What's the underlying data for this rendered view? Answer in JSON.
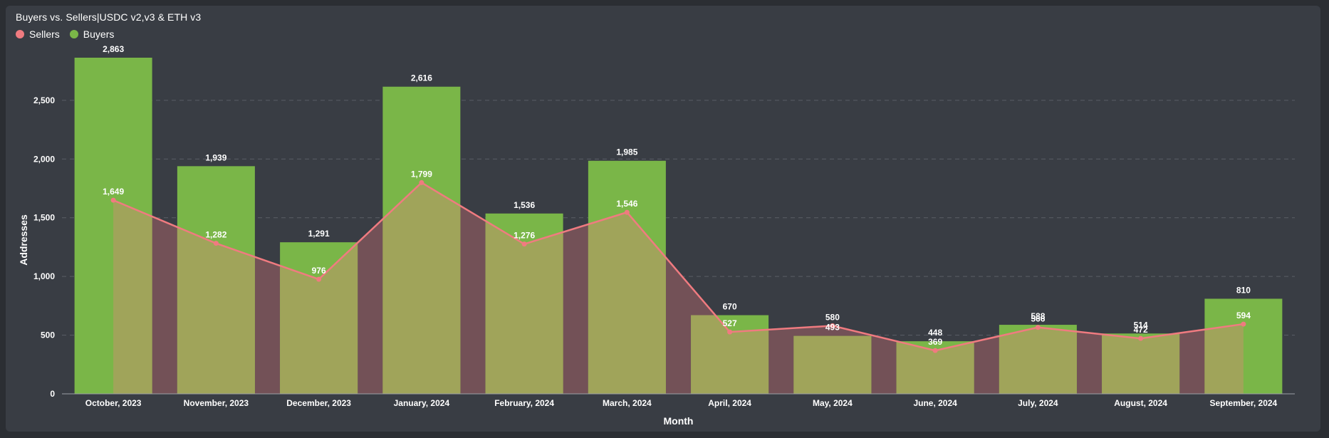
{
  "title": "Buyers vs. Sellers|USDC v2,v3 & ETH v3",
  "colors": {
    "background": "#2b2e33",
    "card": "#393d44",
    "buyers": "#7ab648",
    "sellers_line": "#f07b80",
    "overlap": "#a0a45a",
    "sellers_area": "#735157",
    "grid": "#5a5e66",
    "text": "#ffffff"
  },
  "legend": [
    {
      "name": "Sellers",
      "color": "#f07b80"
    },
    {
      "name": "Buyers",
      "color": "#7ab648"
    }
  ],
  "chart_data": {
    "type": "bar",
    "title": "Buyers vs. Sellers|USDC v2,v3 & ETH v3",
    "xlabel": "Month",
    "ylabel": "Addresses",
    "ylim": [
      0,
      2863
    ],
    "yticks": [
      0,
      500,
      1000,
      1500,
      2000,
      2500
    ],
    "ytick_labels": [
      "0",
      "500",
      "1,000",
      "1,500",
      "2,000",
      "2,500"
    ],
    "grid": true,
    "legend_position": "top-left",
    "categories": [
      "October, 2023",
      "November, 2023",
      "December, 2023",
      "January, 2024",
      "February, 2024",
      "March, 2024",
      "April, 2024",
      "May, 2024",
      "June, 2024",
      "July, 2024",
      "August, 2024",
      "September, 2024"
    ],
    "series": [
      {
        "name": "Buyers",
        "type": "bar",
        "values": [
          2863,
          1939,
          1291,
          2616,
          1536,
          1985,
          670,
          493,
          448,
          588,
          514,
          810
        ],
        "labels": [
          "2,863",
          "1,939",
          "1,291",
          "2,616",
          "1,536",
          "1,985",
          "670",
          "493",
          "448",
          "588",
          "514",
          "810"
        ]
      },
      {
        "name": "Sellers",
        "type": "area-line",
        "values": [
          1649,
          1282,
          976,
          1799,
          1276,
          1546,
          527,
          580,
          369,
          566,
          472,
          594
        ],
        "labels": [
          "1,649",
          "1,282",
          "976",
          "1,799",
          "1,276",
          "1,546",
          "527",
          "580",
          "369",
          "566",
          "472",
          "594"
        ]
      }
    ]
  }
}
